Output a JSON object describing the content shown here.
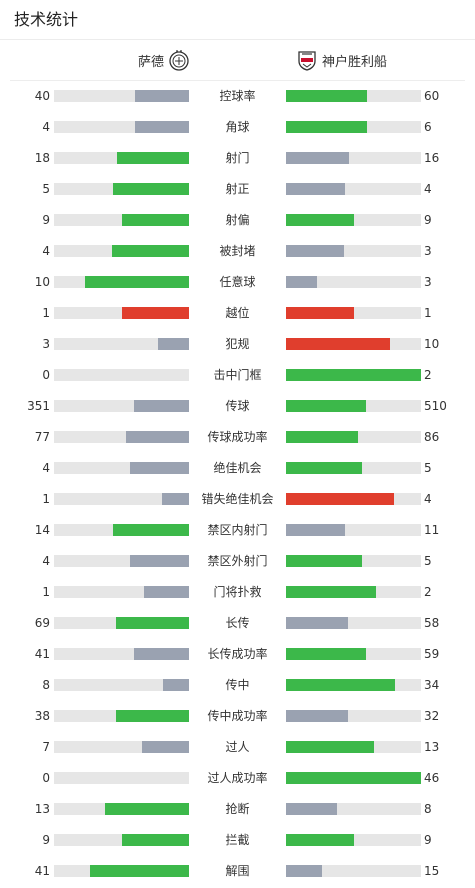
{
  "header": {
    "title": "技术统计"
  },
  "teams": {
    "home": "萨德",
    "away": "神户胜利船"
  },
  "colors": {
    "green": "#3cb84a",
    "gray": "#9aa2b1",
    "red": "#e03e2d",
    "track": "#e6e6e6"
  },
  "stats": [
    {
      "label": "控球率",
      "home": 40,
      "away": 60,
      "home_ratio": 0.4,
      "away_ratio": 0.6,
      "home_color": "gray",
      "away_color": "green"
    },
    {
      "label": "角球",
      "home": 4,
      "away": 6,
      "home_ratio": 0.4,
      "away_ratio": 0.6,
      "home_color": "gray",
      "away_color": "green"
    },
    {
      "label": "射门",
      "home": 18,
      "away": 16,
      "home_ratio": 0.53,
      "away_ratio": 0.47,
      "home_color": "green",
      "away_color": "gray"
    },
    {
      "label": "射正",
      "home": 5,
      "away": 4,
      "home_ratio": 0.56,
      "away_ratio": 0.44,
      "home_color": "green",
      "away_color": "gray"
    },
    {
      "label": "射偏",
      "home": 9,
      "away": 9,
      "home_ratio": 0.5,
      "away_ratio": 0.5,
      "home_color": "green",
      "away_color": "green"
    },
    {
      "label": "被封堵",
      "home": 4,
      "away": 3,
      "home_ratio": 0.57,
      "away_ratio": 0.43,
      "home_color": "green",
      "away_color": "gray"
    },
    {
      "label": "任意球",
      "home": 10,
      "away": 3,
      "home_ratio": 0.77,
      "away_ratio": 0.23,
      "home_color": "green",
      "away_color": "gray"
    },
    {
      "label": "越位",
      "home": 1,
      "away": 1,
      "home_ratio": 0.5,
      "away_ratio": 0.5,
      "home_color": "red",
      "away_color": "red"
    },
    {
      "label": "犯规",
      "home": 3,
      "away": 10,
      "home_ratio": 0.23,
      "away_ratio": 0.77,
      "home_color": "gray",
      "away_color": "red"
    },
    {
      "label": "击中门框",
      "home": 0,
      "away": 2,
      "home_ratio": 0,
      "away_ratio": 1,
      "home_color": "gray",
      "away_color": "green"
    },
    {
      "label": "传球",
      "home": 351,
      "away": 510,
      "home_ratio": 0.41,
      "away_ratio": 0.59,
      "home_color": "gray",
      "away_color": "green"
    },
    {
      "label": "传球成功率",
      "home": 77,
      "away": 86,
      "home_ratio": 0.47,
      "away_ratio": 0.53,
      "home_color": "gray",
      "away_color": "green"
    },
    {
      "label": "绝佳机会",
      "home": 4,
      "away": 5,
      "home_ratio": 0.44,
      "away_ratio": 0.56,
      "home_color": "gray",
      "away_color": "green"
    },
    {
      "label": "错失绝佳机会",
      "home": 1,
      "away": 4,
      "home_ratio": 0.2,
      "away_ratio": 0.8,
      "home_color": "gray",
      "away_color": "red"
    },
    {
      "label": "禁区内射门",
      "home": 14,
      "away": 11,
      "home_ratio": 0.56,
      "away_ratio": 0.44,
      "home_color": "green",
      "away_color": "gray"
    },
    {
      "label": "禁区外射门",
      "home": 4,
      "away": 5,
      "home_ratio": 0.44,
      "away_ratio": 0.56,
      "home_color": "gray",
      "away_color": "green"
    },
    {
      "label": "门将扑救",
      "home": 1,
      "away": 2,
      "home_ratio": 0.33,
      "away_ratio": 0.67,
      "home_color": "gray",
      "away_color": "green"
    },
    {
      "label": "长传",
      "home": 69,
      "away": 58,
      "home_ratio": 0.54,
      "away_ratio": 0.46,
      "home_color": "green",
      "away_color": "gray"
    },
    {
      "label": "长传成功率",
      "home": 41,
      "away": 59,
      "home_ratio": 0.41,
      "away_ratio": 0.59,
      "home_color": "gray",
      "away_color": "green"
    },
    {
      "label": "传中",
      "home": 8,
      "away": 34,
      "home_ratio": 0.19,
      "away_ratio": 0.81,
      "home_color": "gray",
      "away_color": "green"
    },
    {
      "label": "传中成功率",
      "home": 38,
      "away": 32,
      "home_ratio": 0.54,
      "away_ratio": 0.46,
      "home_color": "green",
      "away_color": "gray"
    },
    {
      "label": "过人",
      "home": 7,
      "away": 13,
      "home_ratio": 0.35,
      "away_ratio": 0.65,
      "home_color": "gray",
      "away_color": "green"
    },
    {
      "label": "过人成功率",
      "home": 0,
      "away": 46,
      "home_ratio": 0,
      "away_ratio": 1,
      "home_color": "gray",
      "away_color": "green"
    },
    {
      "label": "抢断",
      "home": 13,
      "away": 8,
      "home_ratio": 0.62,
      "away_ratio": 0.38,
      "home_color": "green",
      "away_color": "gray"
    },
    {
      "label": "拦截",
      "home": 9,
      "away": 9,
      "home_ratio": 0.5,
      "away_ratio": 0.5,
      "home_color": "green",
      "away_color": "green"
    },
    {
      "label": "解围",
      "home": 41,
      "away": 15,
      "home_ratio": 0.73,
      "away_ratio": 0.27,
      "home_color": "green",
      "away_color": "gray"
    }
  ]
}
